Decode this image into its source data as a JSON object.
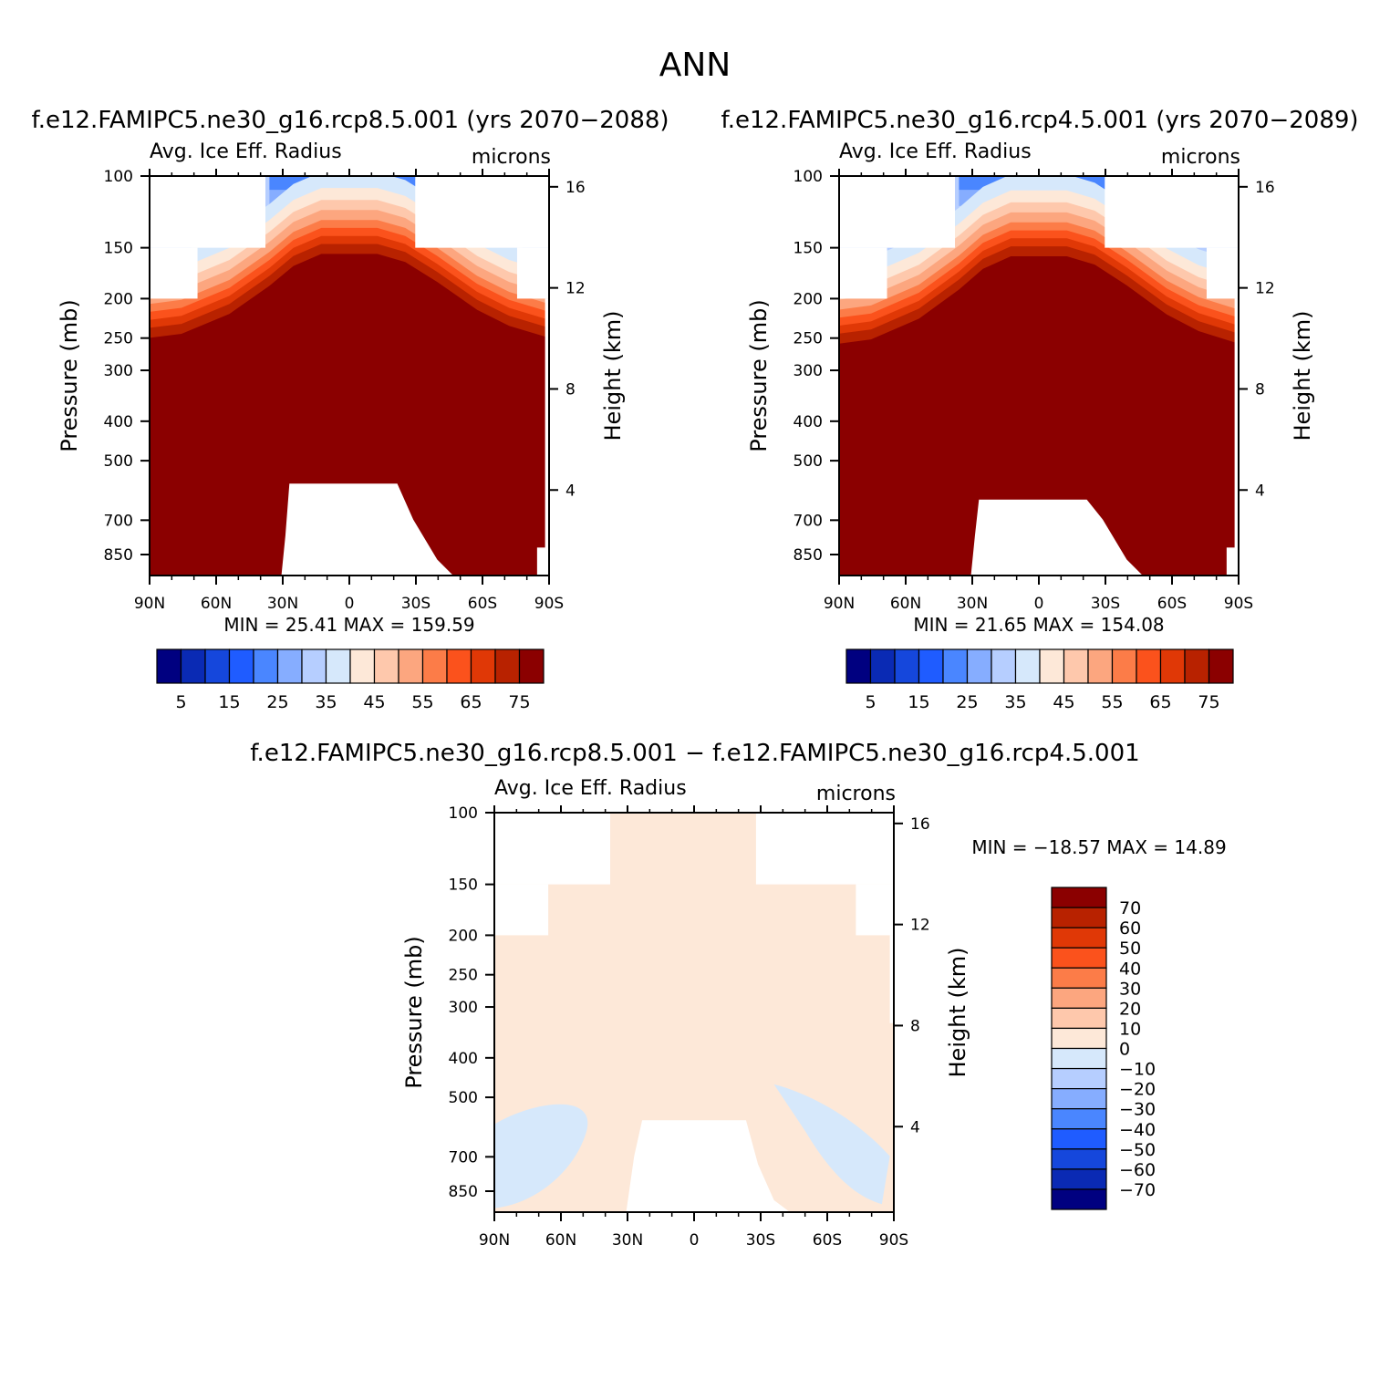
{
  "page_title": "ANN",
  "colors": {
    "abs_scale": [
      "#000080",
      "#0a2ab4",
      "#1547dc",
      "#1f5cff",
      "#4a86ff",
      "#86adff",
      "#b6ceff",
      "#d6e8fb",
      "#fde8d8",
      "#fec8ac",
      "#fca67f",
      "#fc7c48",
      "#fb521c",
      "#e03806",
      "#b82200",
      "#8b0000"
    ],
    "diff_scale": [
      "#000080",
      "#0a2ab4",
      "#1547dc",
      "#1f5cff",
      "#4a86ff",
      "#86adff",
      "#b6ceff",
      "#d6e8fb",
      "#fde8d8",
      "#fec8ac",
      "#fca67f",
      "#fc7c48",
      "#fb521c",
      "#e03806",
      "#b82200",
      "#8b0000"
    ]
  },
  "chart_data": [
    {
      "id": "panel-rcp85",
      "type": "contour",
      "case_title": "f.e12.FAMIPC5.ne30_g16.rcp8.5.001 (yrs 2070-2088)",
      "variable": "Avg. Ice Eff. Radius",
      "units": "microns",
      "xlabel": "",
      "ylabel": "Pressure (mb)",
      "ylabel_right": "Height (km)",
      "xticks": [
        "90N",
        "60N",
        "30N",
        "0",
        "30S",
        "60S",
        "90S"
      ],
      "xtick_values": [
        90,
        60,
        30,
        0,
        -30,
        -60,
        -90
      ],
      "yticks": [
        100,
        150,
        200,
        250,
        300,
        400,
        500,
        700,
        850
      ],
      "yticks_right": [
        16,
        12,
        8,
        4
      ],
      "ylim": [
        1000,
        100
      ],
      "min_label": "MIN =",
      "min_value": "25.41",
      "max_label": "MAX =",
      "max_value": "159.59",
      "colorbar_labels": [
        "5",
        "15",
        "25",
        "35",
        "45",
        "55",
        "65",
        "75"
      ],
      "contour_levels": [
        5,
        10,
        15,
        20,
        25,
        30,
        35,
        40,
        45,
        50,
        55,
        60,
        65,
        70,
        75
      ]
    },
    {
      "id": "panel-rcp45",
      "type": "contour",
      "case_title": "f.e12.FAMIPC5.ne30_g16.rcp4.5.001 (yrs 2070-2089)",
      "variable": "Avg. Ice Eff. Radius",
      "units": "microns",
      "xlabel": "",
      "ylabel": "Pressure (mb)",
      "ylabel_right": "Height (km)",
      "xticks": [
        "90N",
        "60N",
        "30N",
        "0",
        "30S",
        "60S",
        "90S"
      ],
      "xtick_values": [
        90,
        60,
        30,
        0,
        -30,
        -60,
        -90
      ],
      "yticks": [
        100,
        150,
        200,
        250,
        300,
        400,
        500,
        700,
        850
      ],
      "yticks_right": [
        16,
        12,
        8,
        4
      ],
      "ylim": [
        1000,
        100
      ],
      "min_label": "MIN =",
      "min_value": "21.65",
      "max_label": "MAX =",
      "max_value": "154.08",
      "colorbar_labels": [
        "5",
        "15",
        "25",
        "35",
        "45",
        "55",
        "65",
        "75"
      ],
      "contour_levels": [
        5,
        10,
        15,
        20,
        25,
        30,
        35,
        40,
        45,
        50,
        55,
        60,
        65,
        70,
        75
      ]
    },
    {
      "id": "panel-diff",
      "type": "contour",
      "case_title": "f.e12.FAMIPC5.ne30_g16.rcp8.5.001 - f.e12.FAMIPC5.ne30_g16.rcp4.5.001",
      "variable": "Avg. Ice Eff. Radius",
      "units": "microns",
      "xlabel": "",
      "ylabel": "Pressure (mb)",
      "ylabel_right": "Height (km)",
      "xticks": [
        "90N",
        "60N",
        "30N",
        "0",
        "30S",
        "60S",
        "90S"
      ],
      "xtick_values": [
        90,
        60,
        30,
        0,
        -30,
        -60,
        -90
      ],
      "yticks": [
        100,
        150,
        200,
        250,
        300,
        400,
        500,
        700,
        850
      ],
      "yticks_right": [
        16,
        12,
        8,
        4
      ],
      "ylim": [
        1000,
        100
      ],
      "min_label": "MIN =",
      "min_value": "-18.57",
      "max_label": "MAX =",
      "max_value": "14.89",
      "colorbar_labels": [
        "70",
        "60",
        "50",
        "40",
        "30",
        "20",
        "10",
        "0",
        "-10",
        "-20",
        "-30",
        "-40",
        "-50",
        "-60",
        "-70"
      ],
      "contour_levels": [
        -70,
        -60,
        -50,
        -40,
        -30,
        -20,
        -10,
        0,
        10,
        20,
        30,
        40,
        50,
        60,
        70
      ]
    }
  ]
}
